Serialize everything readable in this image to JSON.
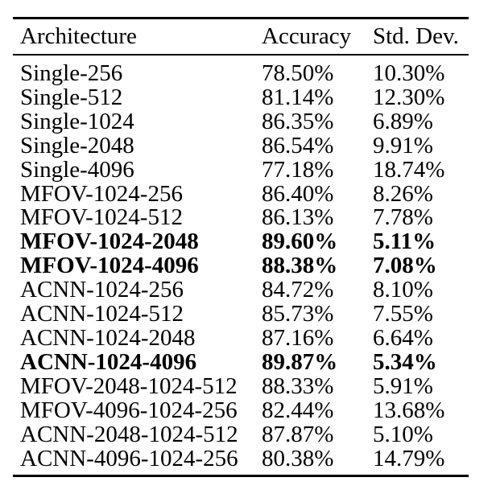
{
  "table": {
    "columns": [
      "Architecture",
      "Accuracy",
      "Std. Dev."
    ],
    "rule_color": "#000000",
    "text_color": "#000000",
    "background_color": "#ffffff",
    "rows": [
      {
        "architecture": "Single-256",
        "accuracy": "78.50%",
        "std_dev": "10.30%",
        "bold": false
      },
      {
        "architecture": "Single-512",
        "accuracy": "81.14%",
        "std_dev": "12.30%",
        "bold": false
      },
      {
        "architecture": "Single-1024",
        "accuracy": "86.35%",
        "std_dev": "6.89%",
        "bold": false
      },
      {
        "architecture": "Single-2048",
        "accuracy": "86.54%",
        "std_dev": "9.91%",
        "bold": false
      },
      {
        "architecture": "Single-4096",
        "accuracy": "77.18%",
        "std_dev": "18.74%",
        "bold": false
      },
      {
        "architecture": "MFOV-1024-256",
        "accuracy": "86.40%",
        "std_dev": "8.26%",
        "bold": false
      },
      {
        "architecture": "MFOV-1024-512",
        "accuracy": "86.13%",
        "std_dev": "7.78%",
        "bold": false
      },
      {
        "architecture": "MFOV-1024-2048",
        "accuracy": "89.60%",
        "std_dev": "5.11%",
        "bold": true
      },
      {
        "architecture": "MFOV-1024-4096",
        "accuracy": "88.38%",
        "std_dev": "7.08%",
        "bold": true
      },
      {
        "architecture": "ACNN-1024-256",
        "accuracy": "84.72%",
        "std_dev": "8.10%",
        "bold": false
      },
      {
        "architecture": "ACNN-1024-512",
        "accuracy": "85.73%",
        "std_dev": "7.55%",
        "bold": false
      },
      {
        "architecture": "ACNN-1024-2048",
        "accuracy": "87.16%",
        "std_dev": "6.64%",
        "bold": false
      },
      {
        "architecture": "ACNN-1024-4096",
        "accuracy": "89.87%",
        "std_dev": "5.34%",
        "bold": true
      },
      {
        "architecture": "MFOV-2048-1024-512",
        "accuracy": "88.33%",
        "std_dev": "5.91%",
        "bold": false
      },
      {
        "architecture": "MFOV-4096-1024-256",
        "accuracy": "82.44%",
        "std_dev": "13.68%",
        "bold": false
      },
      {
        "architecture": "ACNN-2048-1024-512",
        "accuracy": "87.87%",
        "std_dev": "5.10%",
        "bold": false
      },
      {
        "architecture": "ACNN-4096-1024-256",
        "accuracy": "80.38%",
        "std_dev": "14.79%",
        "bold": false
      }
    ]
  }
}
